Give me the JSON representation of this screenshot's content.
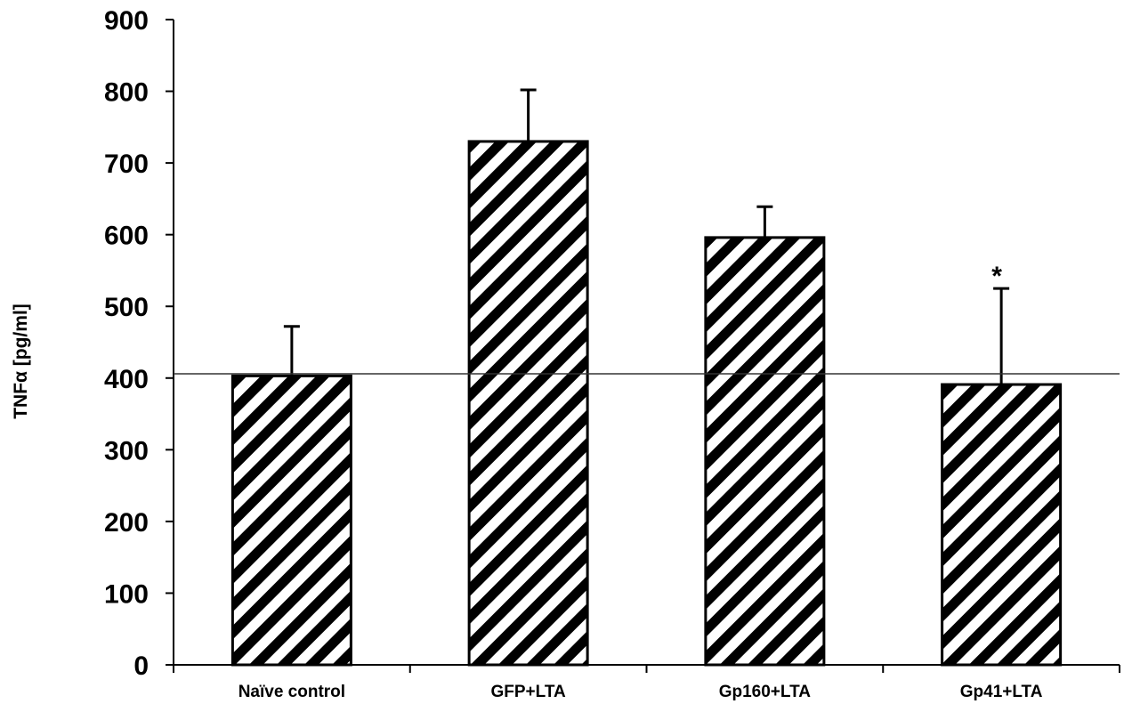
{
  "chart_data": {
    "type": "bar",
    "categories": [
      "Naïve control",
      "GFP+LTA",
      "Gp160+LTA",
      "Gp41+LTA"
    ],
    "values": [
      403,
      730,
      596,
      391
    ],
    "errors": [
      69,
      72,
      43,
      134
    ],
    "ylabel": "TNFα [pg/ml]",
    "xlabel": "",
    "ylim": [
      0,
      900
    ],
    "yticks": [
      0,
      100,
      200,
      300,
      400,
      500,
      600,
      700,
      800,
      900
    ],
    "reference_line": 406,
    "annotations": [
      {
        "category": "Gp41+LTA",
        "text": "*"
      }
    ],
    "grid": false,
    "bar_fill": "diagonal black-and-white hatch",
    "colors": {
      "bar_stripe": "#000000",
      "bar_background": "#ffffff",
      "axis": "#000000"
    }
  }
}
